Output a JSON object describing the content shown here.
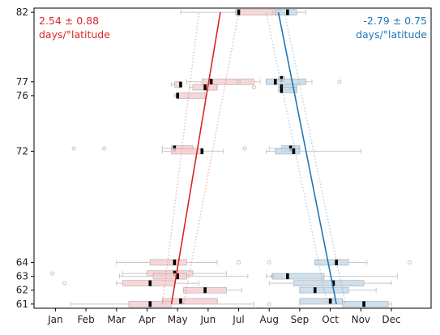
{
  "chart_data": {
    "type": "box",
    "title": "",
    "xlabel": "",
    "ylabel": "",
    "x_unit": "month",
    "xlim": [
      0.3,
      13.3
    ],
    "ylim": [
      60.7,
      82.3
    ],
    "x_ticks": [
      {
        "value": 1,
        "label": "Jan"
      },
      {
        "value": 2,
        "label": "Feb"
      },
      {
        "value": 3,
        "label": "Mar"
      },
      {
        "value": 4,
        "label": "Apr"
      },
      {
        "value": 5,
        "label": "May"
      },
      {
        "value": 6,
        "label": "Jun"
      },
      {
        "value": 7,
        "label": "Jul"
      },
      {
        "value": 8,
        "label": "Aug"
      },
      {
        "value": 9,
        "label": "Sep"
      },
      {
        "value": 10,
        "label": "Oct"
      },
      {
        "value": 11,
        "label": "Nov"
      },
      {
        "value": 12,
        "label": "Dec"
      }
    ],
    "y_ticks": [
      61,
      62,
      63,
      64,
      72,
      76,
      77,
      82
    ],
    "colors": {
      "spring": "#d62728",
      "autumn": "#1f77b4",
      "spring_fill": "#f7cfd0",
      "autumn_fill": "#c6d9ea",
      "whisker": "#c8c8c8",
      "median": "#000000"
    },
    "annotations": {
      "spring": {
        "text_line1": "2.54 ± 0.88",
        "text_line2": "days/°latitude"
      },
      "autumn": {
        "text_line1": "-2.79 ± 0.75",
        "text_line2": "days/°latitude"
      }
    },
    "series": [
      {
        "group": "spring",
        "boxes": [
          {
            "y": 82.0,
            "whislo": 5.1,
            "q1": 6.9,
            "med": 7.0,
            "q3": 8.4,
            "whishi": 8.4,
            "fliers": []
          },
          {
            "y": 77.0,
            "whislo": 5.3,
            "q1": 5.8,
            "med": 6.1,
            "q3": 7.5,
            "whishi": 7.7,
            "fliers": [
              7.0
            ]
          },
          {
            "y": 76.8,
            "whislo": 4.8,
            "q1": 4.9,
            "med": 5.1,
            "q3": 5.1,
            "whishi": 5.1,
            "fliers": []
          },
          {
            "y": 76.6,
            "whislo": 5.4,
            "q1": 5.5,
            "med": 5.9,
            "q3": 6.3,
            "whishi": 6.3,
            "fliers": [
              7.5
            ]
          },
          {
            "y": 76.0,
            "whislo": 4.9,
            "q1": 5.0,
            "med": 5.0,
            "q3": 5.9,
            "whishi": 5.9,
            "fliers": []
          },
          {
            "y": 72.2,
            "whislo": 4.5,
            "q1": 4.8,
            "med": 4.9,
            "q3": 5.5,
            "whishi": 5.5,
            "fliers": [
              1.6,
              2.6,
              7.2
            ]
          },
          {
            "y": 72.0,
            "whislo": 4.5,
            "q1": 4.8,
            "med": 5.8,
            "q3": 5.8,
            "whishi": 6.5,
            "fliers": []
          },
          {
            "y": 64.0,
            "whislo": 3.0,
            "q1": 4.1,
            "med": 4.9,
            "q3": 5.3,
            "whishi": 6.3,
            "fliers": [
              7.0
            ]
          },
          {
            "y": 63.2,
            "whislo": 3.2,
            "q1": 4.0,
            "med": 4.9,
            "q3": 5.5,
            "whishi": 6.6,
            "fliers": [
              0.9
            ]
          },
          {
            "y": 63.0,
            "whislo": 3.1,
            "q1": 4.2,
            "med": 5.0,
            "q3": 5.3,
            "whishi": 7.3,
            "fliers": []
          },
          {
            "y": 62.5,
            "whislo": 3.0,
            "q1": 3.2,
            "med": 4.1,
            "q3": 4.9,
            "whishi": 5.7,
            "fliers": [
              1.3
            ]
          },
          {
            "y": 62.0,
            "whislo": 5.2,
            "q1": 5.2,
            "med": 5.9,
            "q3": 6.6,
            "whishi": 7.1,
            "fliers": []
          },
          {
            "y": 61.2,
            "whislo": 4.5,
            "q1": 4.5,
            "med": 5.1,
            "q3": 6.3,
            "whishi": 6.3,
            "fliers": []
          },
          {
            "y": 61.0,
            "whislo": 1.5,
            "q1": 3.4,
            "med": 4.1,
            "q3": 4.8,
            "whishi": 7.5,
            "fliers": []
          }
        ],
        "trend": {
          "slope_line": [
            [
              4.8,
              61
            ],
            [
              6.4,
              82
            ]
          ],
          "ci_lower": [
            [
              4.5,
              61
            ],
            [
              5.7,
              82
            ]
          ],
          "ci_upper": [
            [
              5.2,
              61
            ],
            [
              7.0,
              82
            ]
          ]
        }
      },
      {
        "group": "autumn",
        "boxes": [
          {
            "y": 82.0,
            "whislo": 8.1,
            "q1": 8.2,
            "med": 8.6,
            "q3": 8.9,
            "whishi": 9.2,
            "fliers": []
          },
          {
            "y": 77.2,
            "whislo": 8.3,
            "q1": 8.4,
            "med": 8.4,
            "q3": 8.5,
            "whishi": 8.5,
            "fliers": []
          },
          {
            "y": 77.0,
            "whislo": 7.9,
            "q1": 7.9,
            "med": 8.2,
            "q3": 9.2,
            "whishi": 9.4,
            "fliers": [
              10.3
            ]
          },
          {
            "y": 76.6,
            "whislo": 8.3,
            "q1": 8.4,
            "med": 8.4,
            "q3": 8.9,
            "whishi": 8.9,
            "fliers": []
          },
          {
            "y": 76.4,
            "whislo": 8.3,
            "q1": 8.4,
            "med": 8.4,
            "q3": 8.9,
            "whishi": 8.9,
            "fliers": []
          },
          {
            "y": 72.2,
            "whislo": 8.0,
            "q1": 8.4,
            "med": 8.7,
            "q3": 9.0,
            "whishi": 9.0,
            "fliers": []
          },
          {
            "y": 72.0,
            "whislo": 7.9,
            "q1": 8.2,
            "med": 8.8,
            "q3": 9.0,
            "whishi": 11.0,
            "fliers": []
          },
          {
            "y": 64.0,
            "whislo": 9.5,
            "q1": 9.5,
            "med": 10.2,
            "q3": 10.6,
            "whishi": 11.2,
            "fliers": [
              8.0,
              12.6
            ]
          },
          {
            "y": 63.0,
            "whislo": 7.9,
            "q1": 8.1,
            "med": 8.6,
            "q3": 9.8,
            "whishi": 12.2,
            "fliers": [
              8.1
            ]
          },
          {
            "y": 62.5,
            "whislo": 8.0,
            "q1": 8.8,
            "med": 10.1,
            "q3": 11.1,
            "whishi": 12.0,
            "fliers": []
          },
          {
            "y": 62.0,
            "whislo": 9.0,
            "q1": 9.0,
            "med": 9.5,
            "q3": 10.6,
            "whishi": 11.5,
            "fliers": []
          },
          {
            "y": 61.2,
            "whislo": 9.0,
            "q1": 9.0,
            "med": 10.0,
            "q3": 10.4,
            "whishi": 10.4,
            "fliers": []
          },
          {
            "y": 61.0,
            "whislo": 9.0,
            "q1": 10.4,
            "med": 11.1,
            "q3": 11.9,
            "whishi": 12.0,
            "fliers": [
              8.0
            ]
          }
        ],
        "trend": {
          "slope_line": [
            [
              8.3,
              82
            ],
            [
              10.2,
              61
            ]
          ],
          "ci_lower": [
            [
              7.9,
              82
            ],
            [
              9.9,
              61
            ]
          ],
          "ci_upper": [
            [
              8.5,
              82
            ],
            [
              10.5,
              61
            ]
          ]
        }
      }
    ]
  }
}
